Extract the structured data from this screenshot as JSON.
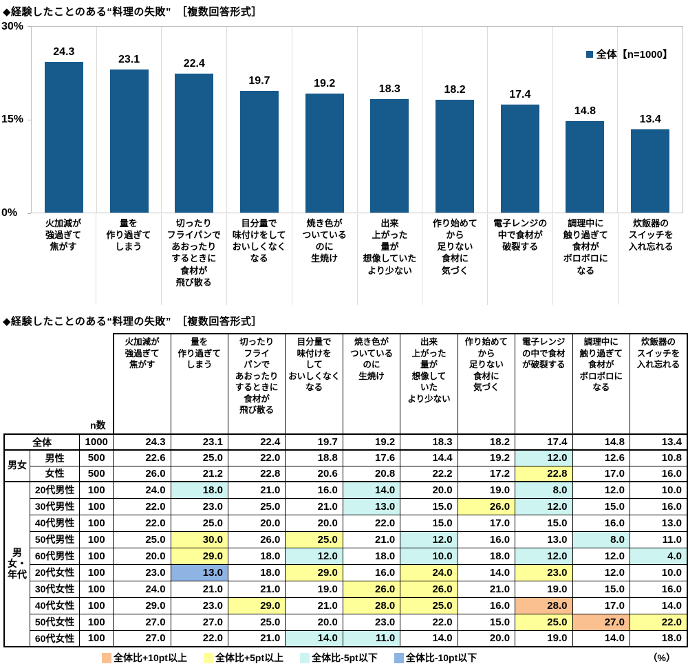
{
  "colors": {
    "bar": "#175A8C",
    "p10": "#FAC090",
    "p5": "#FFFF99",
    "m5": "#CDF4F0",
    "m10": "#8DB4E2"
  },
  "chart": {
    "title": "◆経験したことのある“料理の失敗”　［複数回答形式］",
    "legend_label": "全体【n=1000】",
    "y_ticks": [
      "30%",
      "15%",
      "0%"
    ]
  },
  "table": {
    "title": "◆経験したことのある“料理の失敗”　［複数回答形式］",
    "n_label": "n数",
    "legend": [
      {
        "level": "p10",
        "label": "全体比+10pt以上"
      },
      {
        "level": "p5",
        "label": "全体比+5pt以上"
      },
      {
        "level": "m5",
        "label": "全体比-5pt以下"
      },
      {
        "level": "m10",
        "label": "全体比-10pt以下"
      }
    ],
    "unit_label": "（%）"
  },
  "chart_data": [
    {
      "type": "bar",
      "title": "経験したことのある“料理の失敗”",
      "ylabel": "%",
      "ylim": [
        0,
        30
      ],
      "legend": [
        "全体【n=1000】"
      ],
      "categories": [
        "火加減が\n強過ぎて\n焦がす",
        "量を\n作り過ぎて\nしまう",
        "切ったり\nフライパンで\nあおったり\nするときに\n食材が\n飛び散る",
        "目分量で\n味付けをして\nおいしくなく\nなる",
        "焼き色が\nついている\nのに\n生焼け",
        "出来\n上がった\n量が\n想像していた\nより少ない",
        "作り始めて\nから\n足りない\n食材に\n気づく",
        "電子レンジの\n中で食材が\n破裂する",
        "調理中に\n触り過ぎて\n食材が\nボロボロに\nなる",
        "炊飯器の\nスイッチを\n入れ忘れる"
      ],
      "values": [
        24.3,
        23.1,
        22.4,
        19.7,
        19.2,
        18.3,
        18.2,
        17.4,
        14.8,
        13.4
      ]
    },
    {
      "type": "table",
      "columns": [
        "火加減が\n強過ぎて\n焦がす",
        "量を\n作り過ぎて\nしまう",
        "切ったり\nフライ\nパンで\nあおったり\nするときに\n食材が\n飛び散る",
        "目分量で\n味付けを\nして\nおいしくなく\nなる",
        "焼き色が\nついている\nのに\n生焼け",
        "出来\n上がった\n量が\n想像して\nいた\nより少ない",
        "作り始めて\nから\n足りない\n食材に\n気づく",
        "電子レンジ\nの中で食材\nが破裂する",
        "調理中に\n触り過ぎて\n食材が\nボロボロに\nなる",
        "炊飯器の\nスイッチを\n入れ忘れる"
      ],
      "rows": [
        {
          "group": "",
          "span": 0,
          "label": "全体",
          "n": 1000,
          "values": [
            24.3,
            23.1,
            22.4,
            19.7,
            19.2,
            18.3,
            18.2,
            17.4,
            14.8,
            13.4
          ],
          "hl": {}
        },
        {
          "group": "男女",
          "span": 2,
          "label": "男性",
          "n": 500,
          "values": [
            22.6,
            25.0,
            22.0,
            18.8,
            17.6,
            14.4,
            19.2,
            12.0,
            12.6,
            10.8
          ],
          "hl": {
            "7": "m5"
          }
        },
        {
          "label": "女性",
          "n": 500,
          "values": [
            26.0,
            21.2,
            22.8,
            20.6,
            20.8,
            22.2,
            17.2,
            22.8,
            17.0,
            16.0
          ],
          "hl": {
            "7": "p5"
          }
        },
        {
          "group": "男女・年代",
          "span": 10,
          "label": "20代男性",
          "n": 100,
          "values": [
            24.0,
            18.0,
            21.0,
            16.0,
            14.0,
            20.0,
            19.0,
            8.0,
            12.0,
            10.0
          ],
          "hl": {
            "1": "m5",
            "4": "m5",
            "7": "m5"
          }
        },
        {
          "label": "30代男性",
          "n": 100,
          "values": [
            22.0,
            23.0,
            25.0,
            21.0,
            13.0,
            15.0,
            26.0,
            12.0,
            15.0,
            16.0
          ],
          "hl": {
            "4": "m5",
            "6": "p5",
            "7": "m5"
          }
        },
        {
          "label": "40代男性",
          "n": 100,
          "values": [
            22.0,
            25.0,
            20.0,
            20.0,
            22.0,
            15.0,
            17.0,
            15.0,
            16.0,
            13.0
          ],
          "hl": {}
        },
        {
          "label": "50代男性",
          "n": 100,
          "values": [
            25.0,
            30.0,
            26.0,
            25.0,
            21.0,
            12.0,
            16.0,
            13.0,
            8.0,
            11.0
          ],
          "hl": {
            "1": "p5",
            "3": "p5",
            "5": "m5",
            "8": "m5"
          }
        },
        {
          "label": "60代男性",
          "n": 100,
          "values": [
            20.0,
            29.0,
            18.0,
            12.0,
            18.0,
            10.0,
            18.0,
            12.0,
            12.0,
            4.0
          ],
          "hl": {
            "1": "p5",
            "3": "m5",
            "5": "m5",
            "7": "m5",
            "9": "m5"
          }
        },
        {
          "label": "20代女性",
          "n": 100,
          "values": [
            23.0,
            13.0,
            18.0,
            29.0,
            16.0,
            24.0,
            14.0,
            23.0,
            12.0,
            10.0
          ],
          "hl": {
            "1": "m10",
            "3": "p5",
            "5": "p5",
            "7": "p5"
          }
        },
        {
          "label": "30代女性",
          "n": 100,
          "values": [
            24.0,
            21.0,
            21.0,
            19.0,
            26.0,
            26.0,
            21.0,
            19.0,
            15.0,
            16.0
          ],
          "hl": {
            "4": "p5",
            "5": "p5"
          }
        },
        {
          "label": "40代女性",
          "n": 100,
          "values": [
            29.0,
            23.0,
            29.0,
            21.0,
            28.0,
            25.0,
            16.0,
            28.0,
            17.0,
            14.0
          ],
          "hl": {
            "2": "p5",
            "4": "p5",
            "5": "p5",
            "7": "p10"
          }
        },
        {
          "label": "50代女性",
          "n": 100,
          "values": [
            27.0,
            27.0,
            25.0,
            20.0,
            23.0,
            22.0,
            15.0,
            25.0,
            27.0,
            22.0
          ],
          "hl": {
            "7": "p5",
            "8": "p10",
            "9": "p5"
          }
        },
        {
          "label": "60代女性",
          "n": 100,
          "values": [
            27.0,
            22.0,
            21.0,
            14.0,
            11.0,
            14.0,
            20.0,
            19.0,
            14.0,
            18.0
          ],
          "hl": {
            "3": "m5",
            "4": "m5"
          }
        }
      ]
    }
  ]
}
